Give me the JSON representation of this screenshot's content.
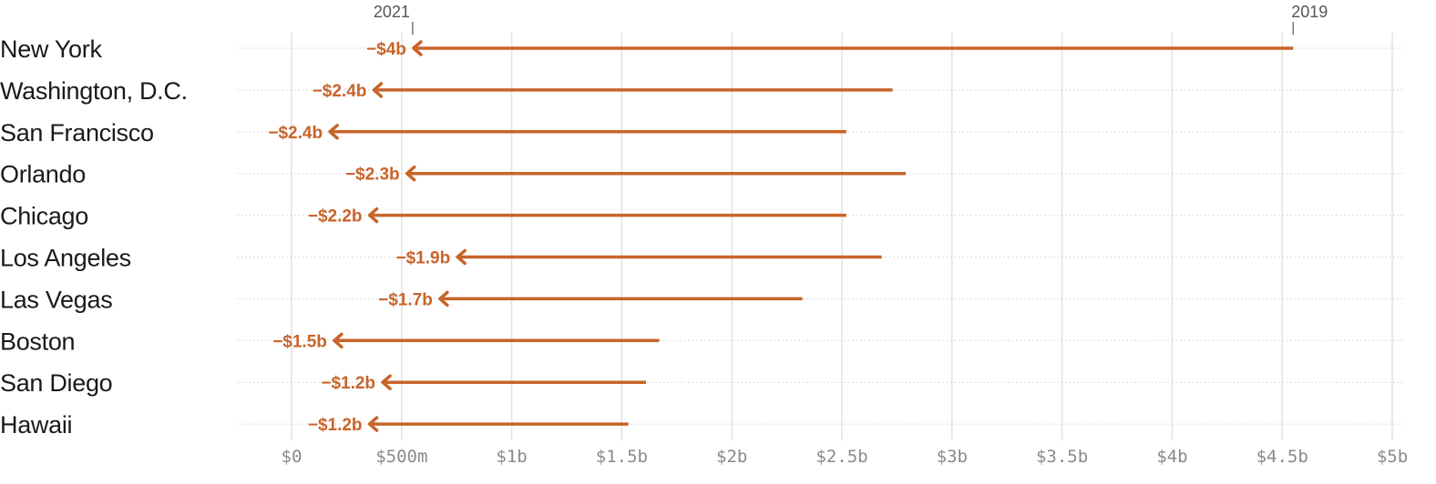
{
  "chart_data": {
    "type": "arrow",
    "start_label": "2019",
    "end_label": "2021",
    "arrow_color": "#c8642a",
    "x_ticks": [
      "$0",
      "$500m",
      "$1b",
      "$1.5b",
      "$2b",
      "$2.5b",
      "$3b",
      "$3.5b",
      "$4b",
      "$4.5b",
      "$5b"
    ],
    "xlim": [
      0,
      5000000000
    ],
    "rows": [
      {
        "city": "New York",
        "value_2019": 4550000000,
        "value_2021": 550000000,
        "change_label": "−$4b"
      },
      {
        "city": "Washington, D.C.",
        "value_2019": 2730000000,
        "value_2021": 370000000,
        "change_label": "−$2.4b"
      },
      {
        "city": "San Francisco",
        "value_2019": 2520000000,
        "value_2021": 170000000,
        "change_label": "−$2.4b"
      },
      {
        "city": "Orlando",
        "value_2019": 2790000000,
        "value_2021": 520000000,
        "change_label": "−$2.3b"
      },
      {
        "city": "Chicago",
        "value_2019": 2520000000,
        "value_2021": 350000000,
        "change_label": "−$2.2b"
      },
      {
        "city": "Los Angeles",
        "value_2019": 2680000000,
        "value_2021": 750000000,
        "change_label": "−$1.9b"
      },
      {
        "city": "Las Vegas",
        "value_2019": 2320000000,
        "value_2021": 670000000,
        "change_label": "−$1.7b"
      },
      {
        "city": "Boston",
        "value_2019": 1670000000,
        "value_2021": 190000000,
        "change_label": "−$1.5b"
      },
      {
        "city": "San Diego",
        "value_2019": 1610000000,
        "value_2021": 410000000,
        "change_label": "−$1.2b"
      },
      {
        "city": "Hawaii",
        "value_2019": 1530000000,
        "value_2021": 350000000,
        "change_label": "−$1.2b"
      }
    ]
  }
}
